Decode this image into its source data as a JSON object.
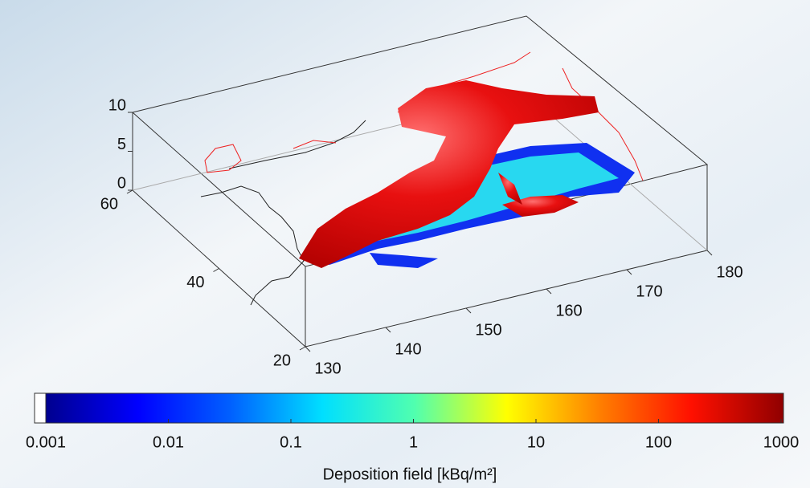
{
  "plot": {
    "z_ticks": [
      0,
      5,
      10
    ],
    "lat_ticks": [
      20,
      40,
      60
    ],
    "lon_ticks": [
      130,
      140,
      150,
      160,
      170,
      180
    ]
  },
  "colorbar": {
    "ticks": [
      0.001,
      0.01,
      0.1,
      1,
      10,
      100,
      1000
    ],
    "label": "Deposition field [kBq/m²]"
  }
}
